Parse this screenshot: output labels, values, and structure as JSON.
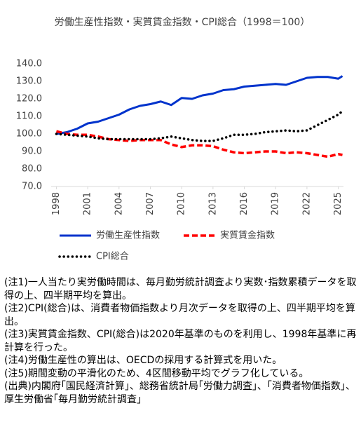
{
  "chart_data": {
    "type": "line",
    "title": "労働生産性指数・実質賃金指数・CPI総合（1998＝100）",
    "x": [
      1998,
      1999,
      2000,
      2001,
      2002,
      2003,
      2004,
      2005,
      2006,
      2007,
      2008,
      2009,
      2010,
      2011,
      2012,
      2013,
      2014,
      2015,
      2016,
      2017,
      2018,
      2019,
      2020,
      2021,
      2022,
      2023,
      2024,
      2025,
      2025.4
    ],
    "series": [
      {
        "name": "労働生産性指数",
        "color": "#0033cc",
        "style": "solid",
        "values": [
          100,
          101,
          103,
          106,
          107,
          109,
          111,
          114,
          116,
          117,
          118.5,
          116.5,
          120.5,
          120,
          122,
          123,
          125,
          125.5,
          127,
          127.5,
          128,
          128.5,
          128,
          130,
          132,
          132.5,
          132.5,
          131.5,
          133
        ]
      },
      {
        "name": "実質賃金指数",
        "color": "#ff0000",
        "style": "dashed",
        "values": [
          101.5,
          100,
          99.5,
          99.5,
          98.5,
          97,
          96.5,
          96,
          96.5,
          96.5,
          96.5,
          94,
          92.5,
          93.5,
          93.5,
          93,
          91,
          89.5,
          89,
          89.5,
          90,
          90,
          89,
          89.5,
          89,
          88,
          87,
          88.5,
          88
        ]
      },
      {
        "name": "CPI総合",
        "color": "#000000",
        "style": "dotted",
        "values": [
          100,
          99.5,
          99,
          98.5,
          97.5,
          97,
          97,
          97,
          97,
          97,
          97.5,
          98.5,
          97.5,
          96.5,
          96,
          96,
          97.5,
          99.5,
          99.5,
          100,
          101,
          101.5,
          102,
          101.5,
          102,
          105,
          108,
          111,
          113
        ]
      }
    ],
    "xlim": [
      1997.5,
      2025.5
    ],
    "xticks": [
      1998,
      2001,
      2004,
      2007,
      2010,
      2013,
      2016,
      2019,
      2022,
      2025
    ],
    "ylim": [
      70,
      140
    ],
    "yticks": [
      {
        "value": 70,
        "label": "70.0"
      },
      {
        "value": 80,
        "label": "80.0"
      },
      {
        "value": 90,
        "label": "90.0"
      },
      {
        "value": 100,
        "label": "100.0"
      },
      {
        "value": 110,
        "label": "110.0"
      },
      {
        "value": 120,
        "label": "120.0"
      },
      {
        "value": 130,
        "label": "130.0"
      },
      {
        "value": 140,
        "label": "140.0"
      }
    ],
    "grid": false
  },
  "notes": [
    "(注1)一人当たり実労働時間は、毎月勤労統計調査より実数･指数累積データを取得の上、四半期平均を算出。",
    "(注2)CPI(総合)は、消費者物価指数より月次データを取得の上、四半期平均を算出。",
    "(注3)実質賃金指数、CPI(総合)は2020年基準のものを利用し、1998年基準に再計算を行った。",
    "(注4)労働生産性の算出は、OECDの採用する計算式を用いた。",
    "(注5)期間変動の平滑化のため、4区間移動平均でグラフ化している。",
    "(出典)内閣府｢国民経済計算｣、総務省統計局｢労働力調査｣、｢消費者物価指数｣、厚生労働省｢毎月勤労統計調査｣"
  ]
}
